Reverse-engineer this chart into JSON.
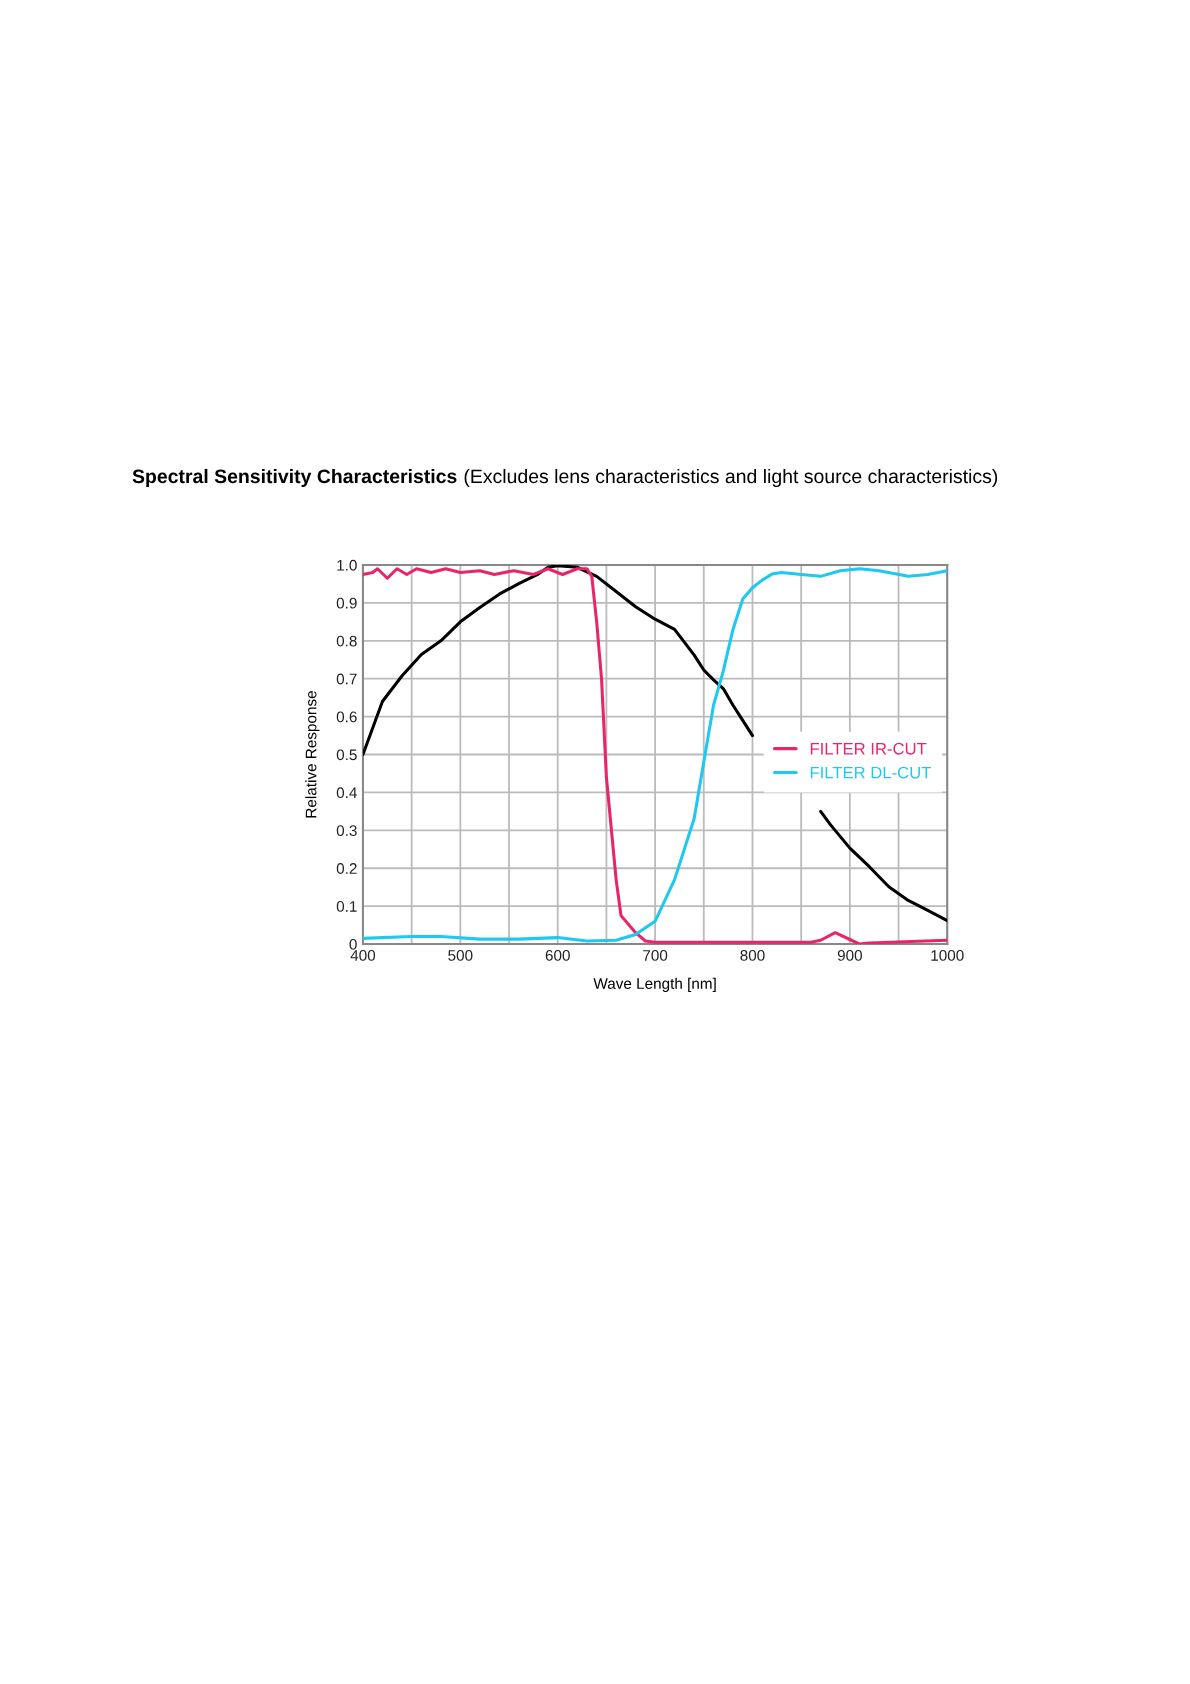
{
  "chart_data": {
    "type": "line",
    "title": "Spectral Sensitivity Characteristics",
    "subtitle": "(Excludes lens characteristics and light source characteristics)",
    "xlabel": "Wave Length [nm]",
    "ylabel": "Relative Response",
    "xlim": [
      400,
      1000
    ],
    "ylim": [
      0,
      1.0
    ],
    "xticks": [
      400,
      {
        "value": 450,
        "label": null
      },
      500,
      {
        "value": 550,
        "label": null
      },
      600,
      {
        "value": 650,
        "label": null
      },
      700,
      {
        "value": 750,
        "label": null
      },
      800,
      {
        "value": 850,
        "label": null
      },
      900,
      {
        "value": 950,
        "label": null
      },
      1000
    ],
    "yticks": [
      0,
      0.1,
      0.2,
      0.3,
      0.4,
      0.5,
      0.6,
      0.7,
      0.8,
      0.9,
      {
        "value": 1.0,
        "label": "1.0"
      }
    ],
    "grid": true,
    "legend": "right",
    "line_style": "solid",
    "marker": "none",
    "series": [
      {
        "color": "#000000",
        "x": [
          400,
          420,
          440,
          460,
          480,
          500,
          520,
          540,
          560,
          580,
          590,
          600,
          620,
          640,
          660,
          680,
          700,
          720,
          740,
          750,
          760,
          770,
          780,
          790,
          800,
          830,
          870,
          880,
          900,
          920,
          940,
          960,
          980,
          1000
        ],
        "values": [
          0.5,
          0.64,
          0.707,
          0.764,
          0.8,
          0.85,
          0.888,
          0.923,
          0.951,
          0.976,
          0.994,
          0.998,
          0.994,
          0.97,
          0.93,
          0.89,
          0.857,
          0.83,
          0.763,
          0.723,
          0.697,
          0.674,
          0.63,
          0.59,
          0.55,
          null,
          0.35,
          0.315,
          0.253,
          0.204,
          0.151,
          0.115,
          0.089,
          0.062
        ]
      },
      {
        "name": "FILTER IR-CUT",
        "color": "#e8246a",
        "x": [
          400,
          410,
          415,
          425,
          435,
          445,
          455,
          470,
          485,
          500,
          520,
          535,
          555,
          575,
          590,
          605,
          620,
          630,
          635,
          640,
          645,
          650,
          660,
          665,
          680,
          690,
          700,
          860,
          870,
          885,
          900,
          910,
          920,
          1000
        ],
        "values": [
          0.975,
          0.98,
          0.99,
          0.965,
          0.99,
          0.975,
          0.99,
          0.98,
          0.99,
          0.98,
          0.985,
          0.975,
          0.985,
          0.975,
          0.99,
          0.975,
          0.99,
          0.99,
          0.97,
          0.85,
          0.7,
          0.44,
          0.17,
          0.075,
          0.03,
          0.008,
          0.005,
          0.005,
          0.01,
          0.03,
          0.012,
          0.0,
          0.003,
          0.01
        ]
      },
      {
        "name": "FILTER DL-CUT",
        "color": "#1ec8f0",
        "x": [
          400,
          450,
          480,
          520,
          560,
          600,
          630,
          660,
          680,
          700,
          720,
          740,
          750,
          760,
          770,
          780,
          790,
          800,
          810,
          820,
          830,
          850,
          870,
          890,
          910,
          930,
          960,
          980,
          1000
        ],
        "values": [
          0.015,
          0.02,
          0.02,
          0.013,
          0.013,
          0.017,
          0.008,
          0.01,
          0.025,
          0.06,
          0.17,
          0.33,
          0.48,
          0.63,
          0.72,
          0.83,
          0.91,
          0.94,
          0.96,
          0.976,
          0.98,
          0.975,
          0.97,
          0.985,
          0.99,
          0.985,
          0.97,
          0.975,
          0.985
        ]
      }
    ]
  }
}
